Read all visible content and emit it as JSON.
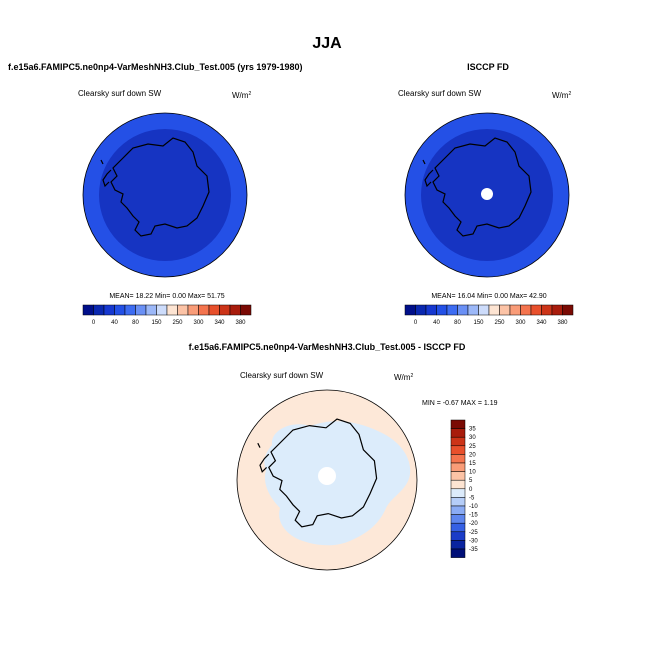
{
  "page": {
    "season": "JJA",
    "left_title": "f.e15a6.FAMIPC5.ne0np4-VarMeshNH3.Club_Test.005 (yrs 1979-1980)",
    "right_title": "ISCCP FD",
    "diff_title": "f.e15a6.FAMIPC5.ne0np4-VarMeshNH3.Club_Test.005 - ISCCP FD"
  },
  "panels": {
    "model": {
      "variable": "Clearsky surf down SW",
      "units_base": "W/m",
      "units_exp": "2",
      "stats": "MEAN=  18.22  Min=   0.00  Max=  51.75",
      "inner_color": "#1634c2",
      "outer_color": "#2450e6"
    },
    "obs": {
      "variable": "Clearsky surf down SW",
      "units_base": "W/m",
      "units_exp": "2",
      "stats": "MEAN=  16.04  Min=   0.00  Max=  42.90",
      "inner_color": "#1634c2",
      "outer_color": "#2450e6"
    },
    "diff": {
      "variable": "Clearsky surf down SW",
      "units_base": "W/m",
      "units_exp": "2",
      "stats": "MIN =  -0.67 MAX =   1.19",
      "base_color": "#fde8d8",
      "neg_color": "#dcecfb"
    }
  },
  "colorbar_abs": {
    "labels": [
      "0",
      "40",
      "80",
      "150",
      "250",
      "300",
      "340",
      "380"
    ],
    "colors": [
      "#000f8a",
      "#0a28b0",
      "#1638d0",
      "#2350e6",
      "#3d6cf2",
      "#6a90f5",
      "#9cb8f8",
      "#cddcfb",
      "#fde4d2",
      "#fcc3a6",
      "#f99c78",
      "#f4744e",
      "#e8502c",
      "#cc3418",
      "#a81c0c",
      "#7a0a04"
    ]
  },
  "colorbar_diff": {
    "labels": [
      "35",
      "30",
      "25",
      "20",
      "15",
      "10",
      "5",
      "0",
      "-5",
      "-10",
      "-15",
      "-20",
      "-25",
      "-30",
      "-35"
    ],
    "colors": [
      "#7a0a04",
      "#a81c0c",
      "#cc3418",
      "#e8502c",
      "#f4744e",
      "#f99c78",
      "#fcc3a6",
      "#fde4d2",
      "#dcebfb",
      "#b5cdf8",
      "#8aabf4",
      "#5e86ee",
      "#3560e4",
      "#1a3cc8",
      "#0a24a0",
      "#000f78"
    ]
  }
}
